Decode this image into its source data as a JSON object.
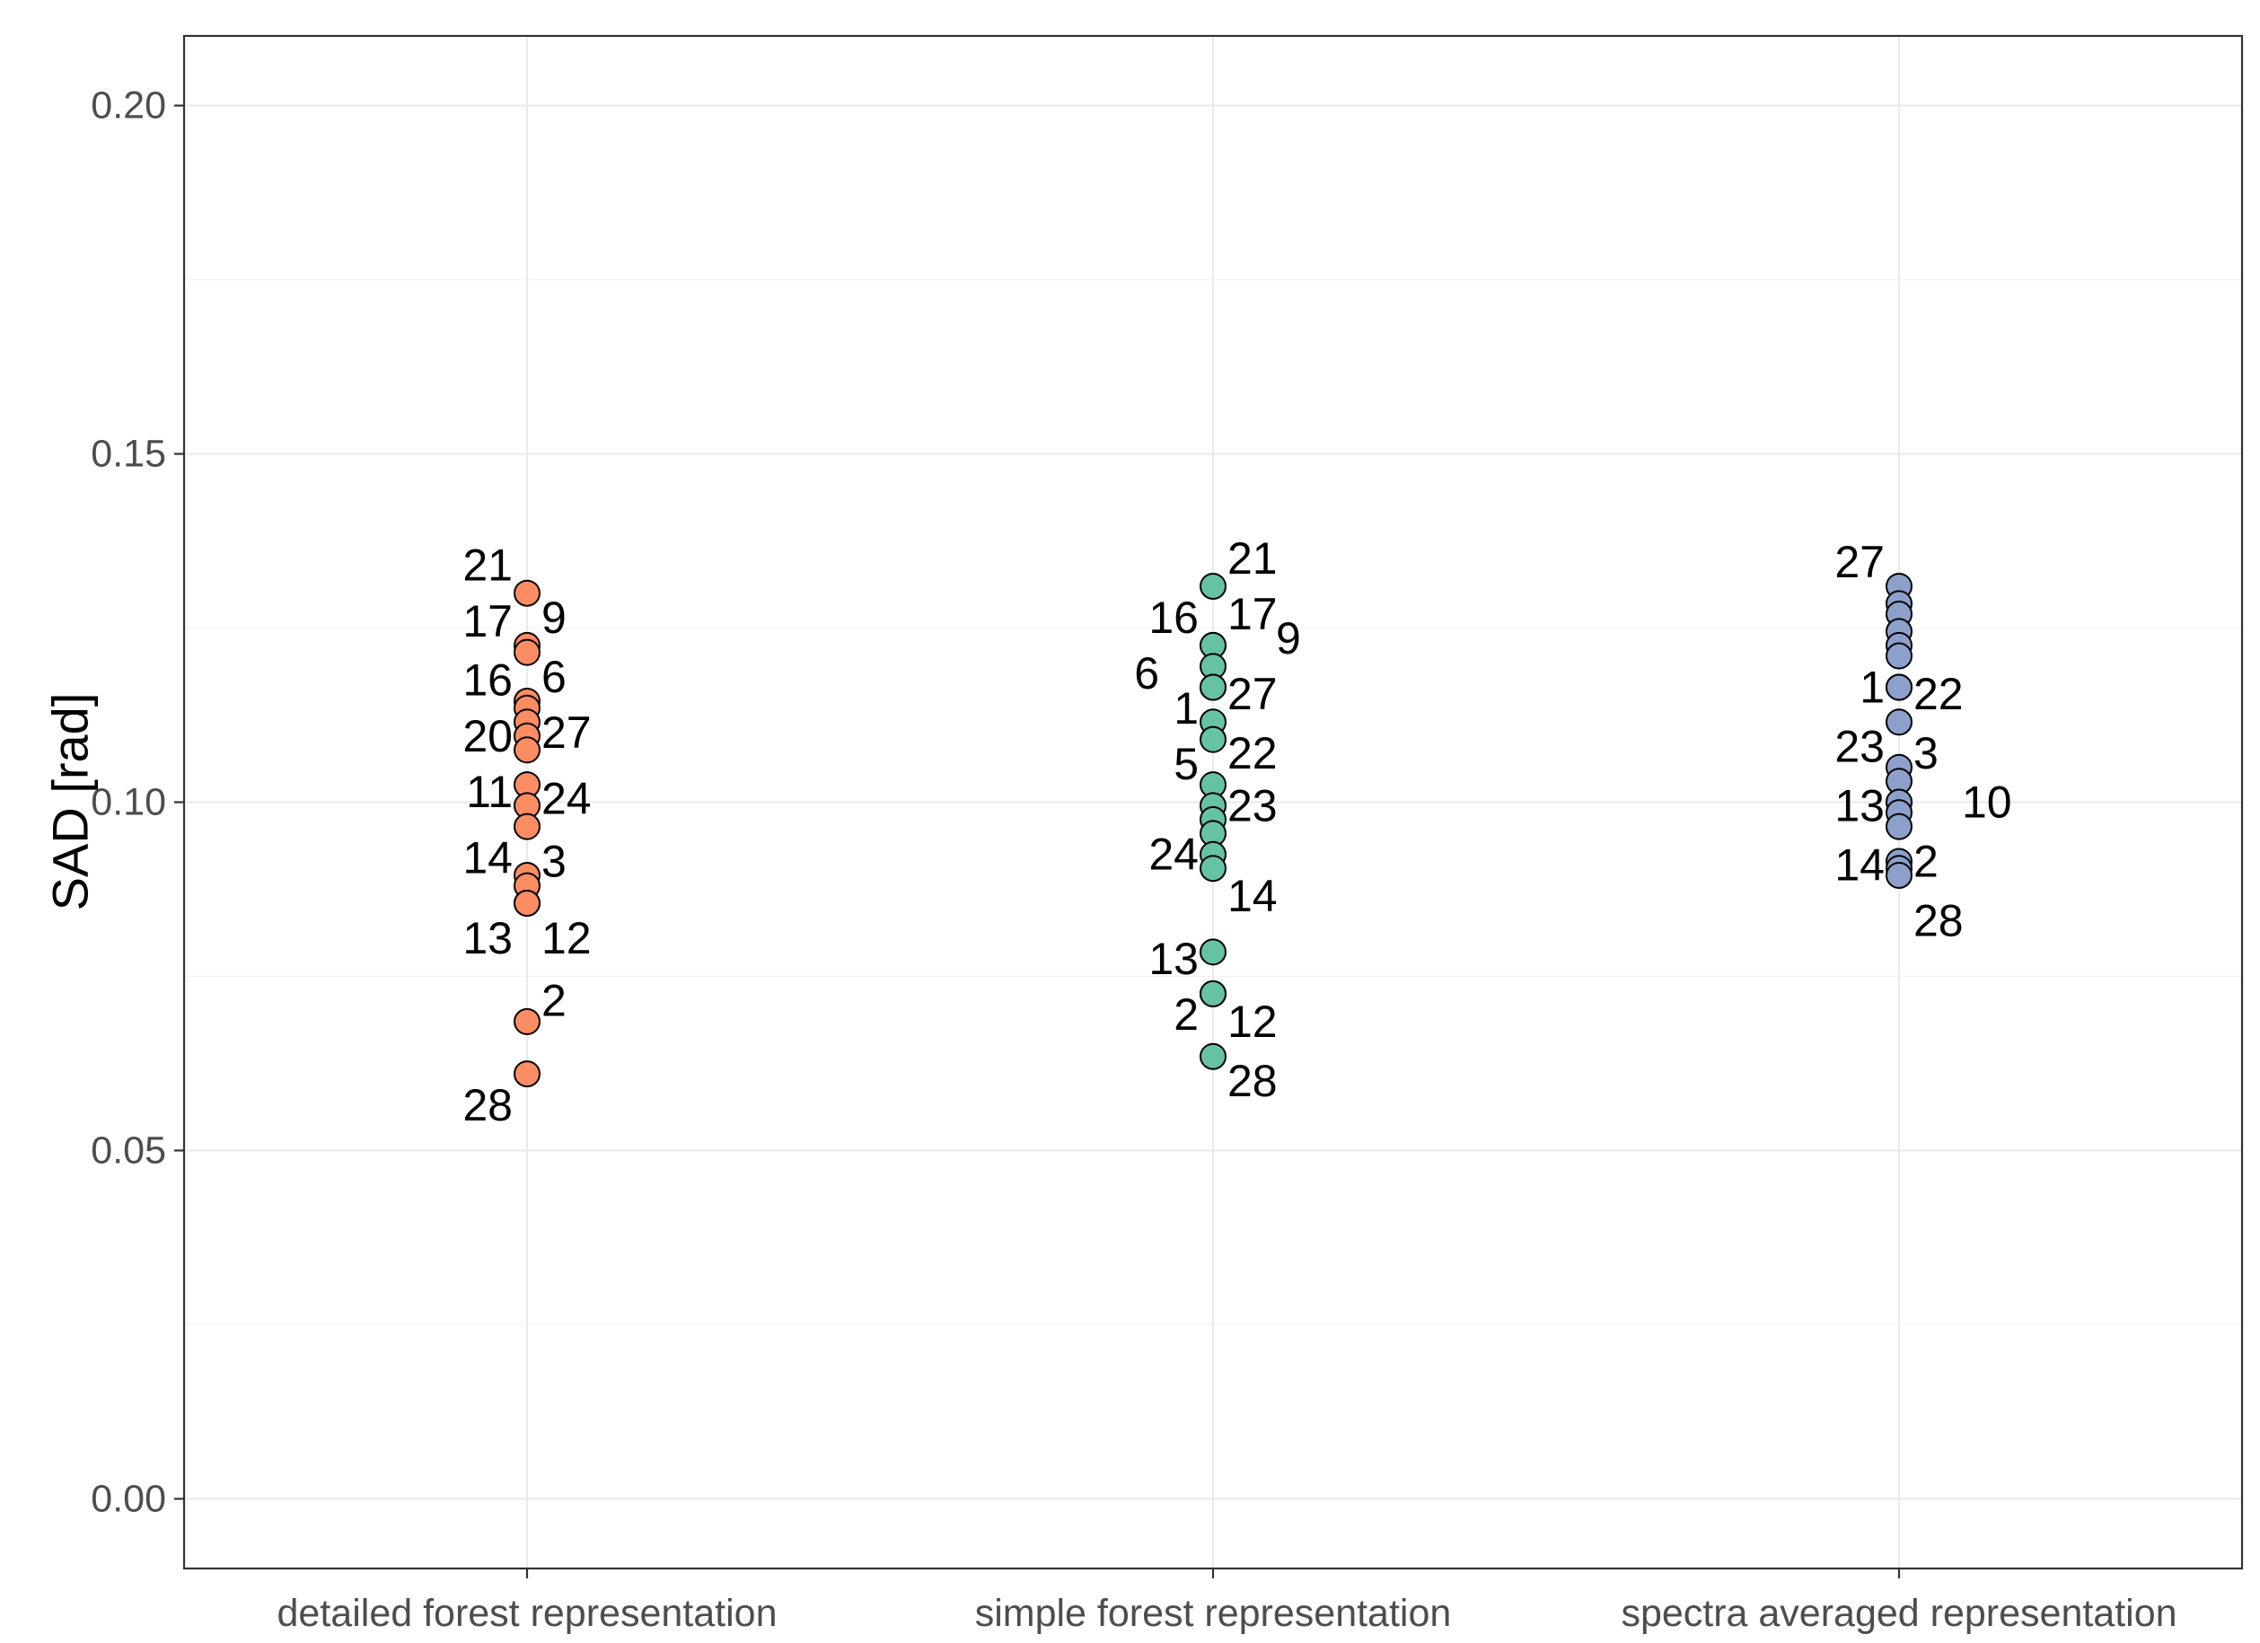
{
  "chart_data": {
    "type": "scatter",
    "title": "",
    "xlabel": "",
    "ylabel": "SAD [rad]",
    "ylim": [
      -0.01,
      0.21
    ],
    "grid": true,
    "legend": "none",
    "categories": [
      "detailed forest representation",
      "simple forest representation",
      "spectra averaged representation"
    ],
    "y_ticks": [
      0.0,
      0.05,
      0.1,
      0.15,
      0.2
    ],
    "y_tick_labels": [
      "0.00",
      "0.05",
      "0.10",
      "0.15",
      "0.20"
    ],
    "series": [
      {
        "name": "detailed forest representation",
        "color": "#FC8D62",
        "points": [
          {
            "y": 0.13,
            "label": "21",
            "label_pos": "left",
            "label_y": 0.134
          },
          {
            "y": 0.1225,
            "label": "17",
            "label_pos": "left",
            "label_y": 0.126
          },
          {
            "y": 0.1215,
            "label": "9",
            "label_pos": "right",
            "label_y": 0.1265
          },
          {
            "y": 0.1145,
            "label": "16",
            "label_pos": "left",
            "label_y": 0.1175
          },
          {
            "y": 0.1135,
            "label": "6",
            "label_pos": "right",
            "label_y": 0.118
          },
          {
            "y": 0.1115,
            "label": "20",
            "label_pos": "left",
            "label_y": 0.1095
          },
          {
            "y": 0.1095,
            "label": "27",
            "label_pos": "right",
            "label_y": 0.11
          },
          {
            "y": 0.1075,
            "label": "",
            "label_pos": "none",
            "label_y": 0
          },
          {
            "y": 0.1025,
            "label": "11",
            "label_pos": "left",
            "label_y": 0.1015
          },
          {
            "y": 0.0995,
            "label": "24",
            "label_pos": "right",
            "label_y": 0.1005
          },
          {
            "y": 0.0965,
            "label": "",
            "label_pos": "none",
            "label_y": 0
          },
          {
            "y": 0.0895,
            "label": "14",
            "label_pos": "left",
            "label_y": 0.092
          },
          {
            "y": 0.088,
            "label": "3",
            "label_pos": "right",
            "label_y": 0.0915
          },
          {
            "y": 0.0855,
            "label": "13",
            "label_pos": "left",
            "label_y": 0.0805
          },
          {
            "y": 0.0855,
            "label": "12",
            "label_pos": "right",
            "label_y": 0.0805
          },
          {
            "y": 0.0685,
            "label": "2",
            "label_pos": "right",
            "label_y": 0.0715
          },
          {
            "y": 0.061,
            "label": "28",
            "label_pos": "left",
            "label_y": 0.0565
          }
        ]
      },
      {
        "name": "simple forest representation",
        "color": "#66C2A5",
        "points": [
          {
            "y": 0.131,
            "label": "21",
            "label_pos": "right",
            "label_y": 0.135
          },
          {
            "y": 0.1225,
            "label": "16",
            "label_pos": "left",
            "label_y": 0.1265
          },
          {
            "y": 0.1225,
            "label": "17",
            "label_pos": "right",
            "label_y": 0.127
          },
          {
            "y": 0.1195,
            "label": "9",
            "label_pos": "far-right",
            "label_y": 0.1235
          },
          {
            "y": 0.1165,
            "label": "6",
            "label_pos": "far-left",
            "label_y": 0.1185
          },
          {
            "y": 0.1165,
            "label": "27",
            "label_pos": "right",
            "label_y": 0.1155
          },
          {
            "y": 0.1115,
            "label": "1",
            "label_pos": "left",
            "label_y": 0.1135
          },
          {
            "y": 0.109,
            "label": "22",
            "label_pos": "right",
            "label_y": 0.107
          },
          {
            "y": 0.1025,
            "label": "5",
            "label_pos": "left",
            "label_y": 0.1055
          },
          {
            "y": 0.0995,
            "label": "23",
            "label_pos": "right",
            "label_y": 0.0995
          },
          {
            "y": 0.0975,
            "label": "",
            "label_pos": "none",
            "label_y": 0
          },
          {
            "y": 0.0955,
            "label": "",
            "label_pos": "none",
            "label_y": 0
          },
          {
            "y": 0.0925,
            "label": "24",
            "label_pos": "left",
            "label_y": 0.0925
          },
          {
            "y": 0.0905,
            "label": "14",
            "label_pos": "right",
            "label_y": 0.0865
          },
          {
            "y": 0.0785,
            "label": "13",
            "label_pos": "left",
            "label_y": 0.0775
          },
          {
            "y": 0.0725,
            "label": "2",
            "label_pos": "left",
            "label_y": 0.0695
          },
          {
            "y": 0.0725,
            "label": "12",
            "label_pos": "right",
            "label_y": 0.0685
          },
          {
            "y": 0.0635,
            "label": "28",
            "label_pos": "right",
            "label_y": 0.06
          }
        ]
      },
      {
        "name": "spectra averaged representation",
        "color": "#8DA0CB",
        "points": [
          {
            "y": 0.131,
            "label": "27",
            "label_pos": "left",
            "label_y": 0.1345
          },
          {
            "y": 0.1285,
            "label": "",
            "label_pos": "none",
            "label_y": 0
          },
          {
            "y": 0.127,
            "label": "",
            "label_pos": "none",
            "label_y": 0
          },
          {
            "y": 0.1245,
            "label": "",
            "label_pos": "none",
            "label_y": 0
          },
          {
            "y": 0.1225,
            "label": "",
            "label_pos": "none",
            "label_y": 0
          },
          {
            "y": 0.121,
            "label": "",
            "label_pos": "none",
            "label_y": 0
          },
          {
            "y": 0.1165,
            "label": "1",
            "label_pos": "left",
            "label_y": 0.1165
          },
          {
            "y": 0.1165,
            "label": "22",
            "label_pos": "right",
            "label_y": 0.1155
          },
          {
            "y": 0.1115,
            "label": "23",
            "label_pos": "left",
            "label_y": 0.108
          },
          {
            "y": 0.105,
            "label": "3",
            "label_pos": "right",
            "label_y": 0.107
          },
          {
            "y": 0.103,
            "label": "",
            "label_pos": "none",
            "label_y": 0
          },
          {
            "y": 0.1,
            "label": "13",
            "label_pos": "left",
            "label_y": 0.0995
          },
          {
            "y": 0.1,
            "label": "10",
            "label_pos": "far-right",
            "label_y": 0.1
          },
          {
            "y": 0.0985,
            "label": "",
            "label_pos": "none",
            "label_y": 0
          },
          {
            "y": 0.0965,
            "label": "",
            "label_pos": "none",
            "label_y": 0
          },
          {
            "y": 0.0915,
            "label": "14",
            "label_pos": "left",
            "label_y": 0.091
          },
          {
            "y": 0.0905,
            "label": "2",
            "label_pos": "right",
            "label_y": 0.0915
          },
          {
            "y": 0.0895,
            "label": "28",
            "label_pos": "right",
            "label_y": 0.083
          }
        ]
      }
    ]
  }
}
